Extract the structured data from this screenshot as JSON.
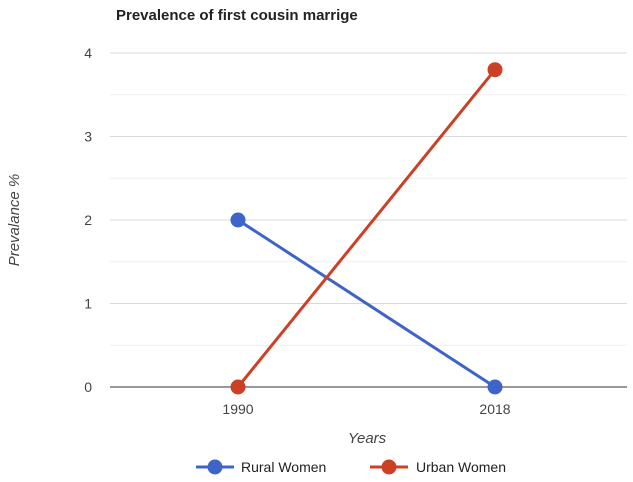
{
  "chart_data": {
    "type": "line",
    "title": "Prevalence of first cousin marrige",
    "xlabel": "Years",
    "ylabel": "Prevalance %",
    "categories": [
      "1990",
      "2018"
    ],
    "series": [
      {
        "name": "Rural Women",
        "values": [
          2,
          0
        ],
        "color": "#3e64c7"
      },
      {
        "name": "Urban Women",
        "values": [
          0,
          3.8
        ],
        "color": "#cc4125"
      }
    ],
    "ylim": [
      0,
      4
    ],
    "yticks": [
      "0",
      "1",
      "2",
      "3",
      "4"
    ],
    "grid": true,
    "legend_position": "bottom"
  }
}
